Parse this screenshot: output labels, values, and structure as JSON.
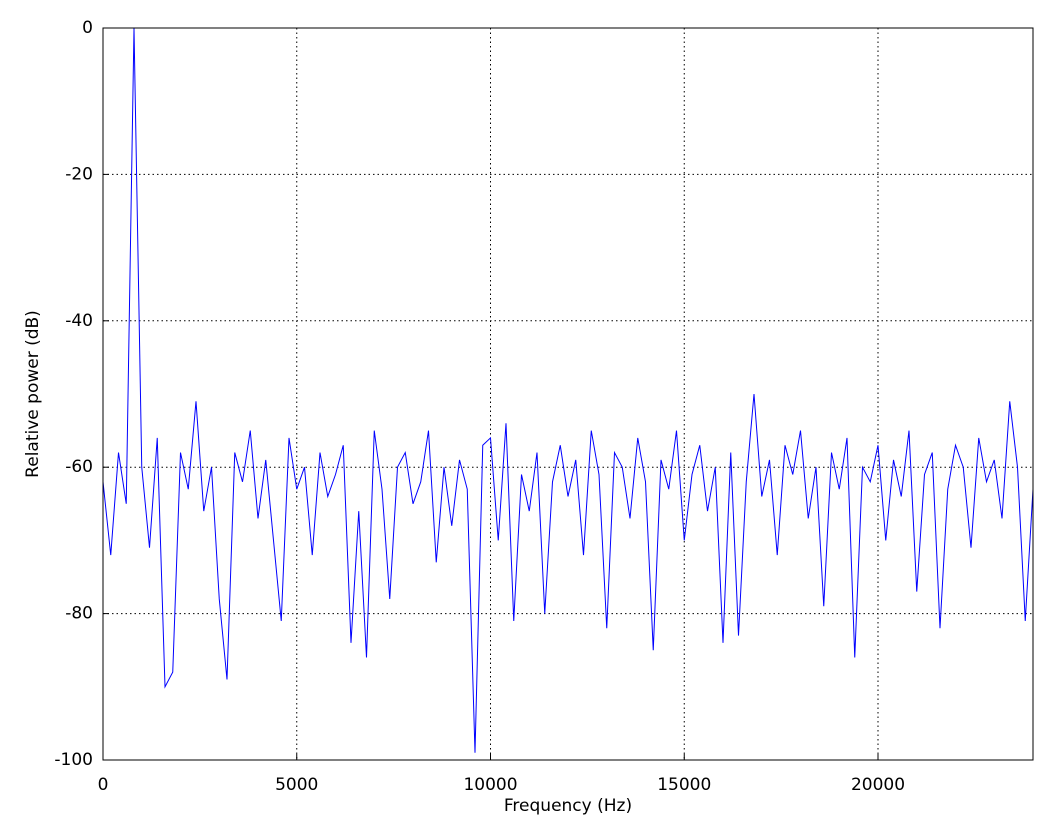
{
  "chart_data": {
    "type": "line",
    "x_label": "Frequency (Hz)",
    "y_label": "Relative power (dB)",
    "x": [
      0,
      200,
      400,
      600,
      800,
      1000,
      1200,
      1400,
      1600,
      1800,
      2000,
      2200,
      2400,
      2600,
      2800,
      3000,
      3200,
      3400,
      3600,
      3800,
      4000,
      4200,
      4400,
      4600,
      4800,
      5000,
      5200,
      5400,
      5600,
      5800,
      6000,
      6200,
      6400,
      6600,
      6800,
      7000,
      7200,
      7400,
      7600,
      7800,
      8000,
      8200,
      8400,
      8600,
      8800,
      9000,
      9200,
      9400,
      9600,
      9800,
      10000,
      10200,
      10400,
      10600,
      10800,
      11000,
      11200,
      11400,
      11600,
      11800,
      12000,
      12200,
      12400,
      12600,
      12800,
      13000,
      13200,
      13400,
      13600,
      13800,
      14000,
      14200,
      14400,
      14600,
      14800,
      15000,
      15200,
      15400,
      15600,
      15800,
      16000,
      16200,
      16400,
      16600,
      16800,
      17000,
      17200,
      17400,
      17600,
      17800,
      18000,
      18200,
      18400,
      18600,
      18800,
      19000,
      19200,
      19400,
      19600,
      19800,
      20000,
      20200,
      20400,
      20600,
      20800,
      21000,
      21200,
      21400,
      21600,
      21800,
      22000,
      22200,
      22400,
      22600,
      22800,
      23000,
      23200,
      23400,
      23600,
      23800,
      24000
    ],
    "series": [
      {
        "color": "#0000ff",
        "values": [
          -62,
          -72,
          -58,
          -65,
          0,
          -60,
          -71,
          -56,
          -90,
          -88,
          -58,
          -63,
          -51,
          -66,
          -60,
          -78,
          -89,
          -58,
          -62,
          -55,
          -67,
          -59,
          -70,
          -81,
          -56,
          -63,
          -60,
          -72,
          -58,
          -64,
          -61,
          -57,
          -84,
          -66,
          -86,
          -55,
          -63,
          -78,
          -60,
          -58,
          -65,
          -62,
          -55,
          -73,
          -60,
          -68,
          -59,
          -63,
          -99,
          -57,
          -56,
          -70,
          -54,
          -81,
          -61,
          -66,
          -58,
          -80,
          -62,
          -57,
          -64,
          -59,
          -72,
          -55,
          -61,
          -82,
          -58,
          -60,
          -67,
          -56,
          -62,
          -85,
          -59,
          -63,
          -55,
          -70,
          -61,
          -57,
          -66,
          -60,
          -84,
          -58,
          -83,
          -62,
          -50,
          -64,
          -59,
          -72,
          -57,
          -61,
          -55,
          -67,
          -60,
          -79,
          -58,
          -63,
          -56,
          -86,
          -60,
          -62,
          -57,
          -70,
          -59,
          -64,
          -55,
          -77,
          -61,
          -58,
          -82,
          -63,
          -57,
          -60,
          -71,
          -56,
          -62,
          -59,
          -67,
          -51,
          -60,
          -81,
          -63
        ]
      }
    ],
    "xlim": [
      0,
      24000
    ],
    "ylim": [
      -100,
      0
    ],
    "xticks": [
      0,
      5000,
      10000,
      15000,
      20000
    ],
    "yticks": [
      0,
      -20,
      -40,
      -60,
      -80,
      -100
    ],
    "grid": true
  }
}
